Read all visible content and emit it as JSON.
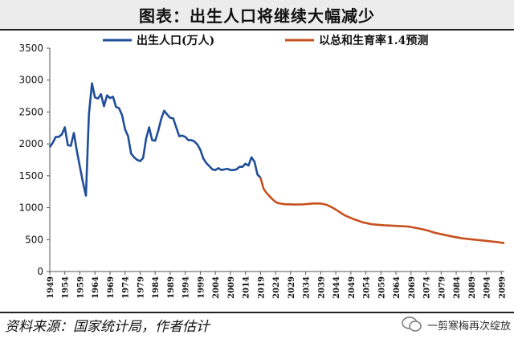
{
  "title": "图表：出生人口将继续大幅减少",
  "source": "资料来源：国家统计局，作者估计",
  "watermark": "一剪寒梅再次绽放",
  "chart_data": {
    "type": "line",
    "title": "图表：出生人口将继续大幅减少",
    "ylim": [
      0,
      3500
    ],
    "y_ticks": [
      0,
      500,
      1000,
      1500,
      2000,
      2500,
      3000,
      3500
    ],
    "xlim": [
      1949,
      2100
    ],
    "x_ticks": [
      1949,
      1954,
      1959,
      1964,
      1969,
      1974,
      1979,
      1984,
      1989,
      1994,
      1999,
      2004,
      2009,
      2014,
      2019,
      2024,
      2029,
      2034,
      2039,
      2044,
      2049,
      2054,
      2059,
      2064,
      2069,
      2074,
      2079,
      2084,
      2089,
      2094,
      2099
    ],
    "grid": false,
    "legend_position": "top",
    "series": [
      {
        "name": "出生人口(万人)",
        "color": "#1f4e9a",
        "points": [
          [
            1949,
            1950
          ],
          [
            1950,
            2020
          ],
          [
            1951,
            2110
          ],
          [
            1952,
            2110
          ],
          [
            1953,
            2150
          ],
          [
            1954,
            2260
          ],
          [
            1955,
            1980
          ],
          [
            1956,
            1970
          ],
          [
            1957,
            2170
          ],
          [
            1958,
            1890
          ],
          [
            1959,
            1640
          ],
          [
            1960,
            1400
          ],
          [
            1961,
            1190
          ],
          [
            1962,
            2460
          ],
          [
            1963,
            2950
          ],
          [
            1964,
            2730
          ],
          [
            1965,
            2710
          ],
          [
            1966,
            2780
          ],
          [
            1967,
            2590
          ],
          [
            1968,
            2760
          ],
          [
            1969,
            2720
          ],
          [
            1970,
            2740
          ],
          [
            1971,
            2580
          ],
          [
            1972,
            2560
          ],
          [
            1973,
            2450
          ],
          [
            1974,
            2230
          ],
          [
            1975,
            2120
          ],
          [
            1976,
            1850
          ],
          [
            1977,
            1790
          ],
          [
            1978,
            1750
          ],
          [
            1979,
            1730
          ],
          [
            1980,
            1780
          ],
          [
            1981,
            2080
          ],
          [
            1982,
            2260
          ],
          [
            1983,
            2060
          ],
          [
            1984,
            2050
          ],
          [
            1985,
            2200
          ],
          [
            1986,
            2390
          ],
          [
            1987,
            2520
          ],
          [
            1988,
            2460
          ],
          [
            1989,
            2410
          ],
          [
            1990,
            2400
          ],
          [
            1991,
            2260
          ],
          [
            1992,
            2120
          ],
          [
            1993,
            2130
          ],
          [
            1994,
            2110
          ],
          [
            1995,
            2060
          ],
          [
            1996,
            2060
          ],
          [
            1997,
            2040
          ],
          [
            1998,
            1990
          ],
          [
            1999,
            1910
          ],
          [
            2000,
            1770
          ],
          [
            2001,
            1700
          ],
          [
            2002,
            1650
          ],
          [
            2003,
            1600
          ],
          [
            2004,
            1590
          ],
          [
            2005,
            1620
          ],
          [
            2006,
            1590
          ],
          [
            2007,
            1600
          ],
          [
            2008,
            1610
          ],
          [
            2009,
            1590
          ],
          [
            2010,
            1590
          ],
          [
            2011,
            1600
          ],
          [
            2012,
            1640
          ],
          [
            2013,
            1640
          ],
          [
            2014,
            1690
          ],
          [
            2015,
            1660
          ],
          [
            2016,
            1790
          ],
          [
            2017,
            1720
          ],
          [
            2018,
            1520
          ],
          [
            2019,
            1470
          ]
        ]
      },
      {
        "name": "以总和生育率1.4预测",
        "color": "#c8501e",
        "points": [
          [
            2019,
            1470
          ],
          [
            2020,
            1300
          ],
          [
            2021,
            1230
          ],
          [
            2022,
            1180
          ],
          [
            2023,
            1130
          ],
          [
            2024,
            1090
          ],
          [
            2025,
            1070
          ],
          [
            2027,
            1055
          ],
          [
            2030,
            1050
          ],
          [
            2033,
            1052
          ],
          [
            2035,
            1060
          ],
          [
            2037,
            1068
          ],
          [
            2039,
            1065
          ],
          [
            2041,
            1045
          ],
          [
            2043,
            1000
          ],
          [
            2045,
            940
          ],
          [
            2047,
            880
          ],
          [
            2050,
            820
          ],
          [
            2053,
            770
          ],
          [
            2056,
            740
          ],
          [
            2060,
            725
          ],
          [
            2064,
            715
          ],
          [
            2068,
            705
          ],
          [
            2071,
            680
          ],
          [
            2074,
            650
          ],
          [
            2077,
            605
          ],
          [
            2080,
            575
          ],
          [
            2083,
            545
          ],
          [
            2086,
            520
          ],
          [
            2089,
            505
          ],
          [
            2092,
            490
          ],
          [
            2095,
            475
          ],
          [
            2098,
            460
          ],
          [
            2100,
            445
          ]
        ]
      }
    ]
  }
}
